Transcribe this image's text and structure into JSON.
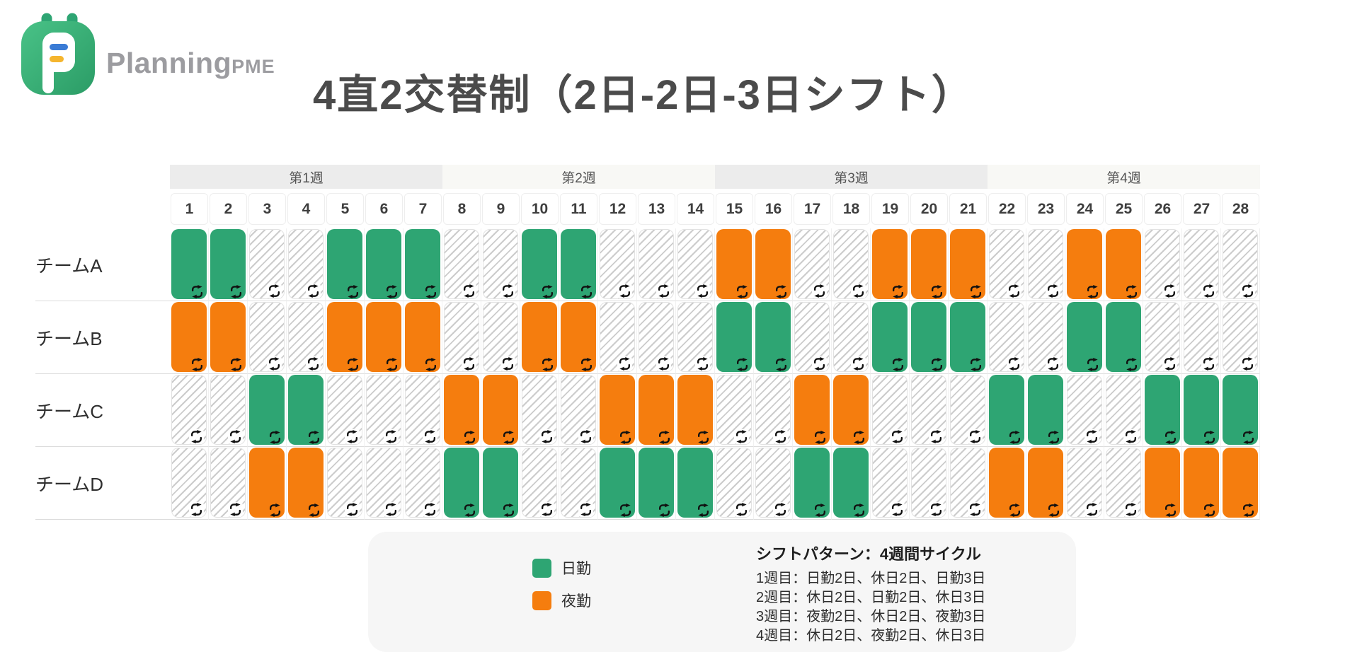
{
  "header": {
    "brand_main": "Planning",
    "brand_suffix": "PME",
    "title": "4直2交替制（2日-2日-3日シフト）"
  },
  "chart_data": {
    "type": "heatmap",
    "title": "4直2交替制（2日-2日-3日シフト）",
    "x_labels": [
      1,
      2,
      3,
      4,
      5,
      6,
      7,
      8,
      9,
      10,
      11,
      12,
      13,
      14,
      15,
      16,
      17,
      18,
      19,
      20,
      21,
      22,
      23,
      24,
      25,
      26,
      27,
      28
    ],
    "week_groups": [
      {
        "label": "第1週",
        "span": 7
      },
      {
        "label": "第2週",
        "span": 7
      },
      {
        "label": "第3週",
        "span": 7
      },
      {
        "label": "第4週",
        "span": 7
      }
    ],
    "value_codes": {
      "D": "日勤",
      "N": "夜勤",
      "O": "休日"
    },
    "rows": [
      {
        "name": "チームA",
        "shifts": "DDOODDDOODDOOONNOONNNOONNOOO"
      },
      {
        "name": "チームB",
        "shifts": "NNOONNNOONNOOODDOODDDOODDOOO"
      },
      {
        "name": "チームC",
        "shifts": "OODDOOONNOONNNOONNOOODDOODDD"
      },
      {
        "name": "チームD",
        "shifts": "OONNOOODDOODDDOODDOOONNOONNN"
      }
    ],
    "colors": {
      "day": "#2EA573",
      "night": "#F57D0E",
      "off_style": "diagonal-hatch"
    },
    "legend_position": "bottom"
  },
  "legend": {
    "items": [
      {
        "label": "日勤",
        "color": "#2EA573"
      },
      {
        "label": "夜勤",
        "color": "#F57D0E"
      }
    ]
  },
  "pattern_note": {
    "title": "シフトパターン：4週間サイクル",
    "lines": [
      "1週目：日勤2日、休日2日、日勤3日",
      "2週目：休日2日、日勤2日、休日3日",
      "3週目：夜勤2日、休日2日、夜勤3日",
      "4週目：休日2日、夜勤2日、休日3日"
    ]
  }
}
